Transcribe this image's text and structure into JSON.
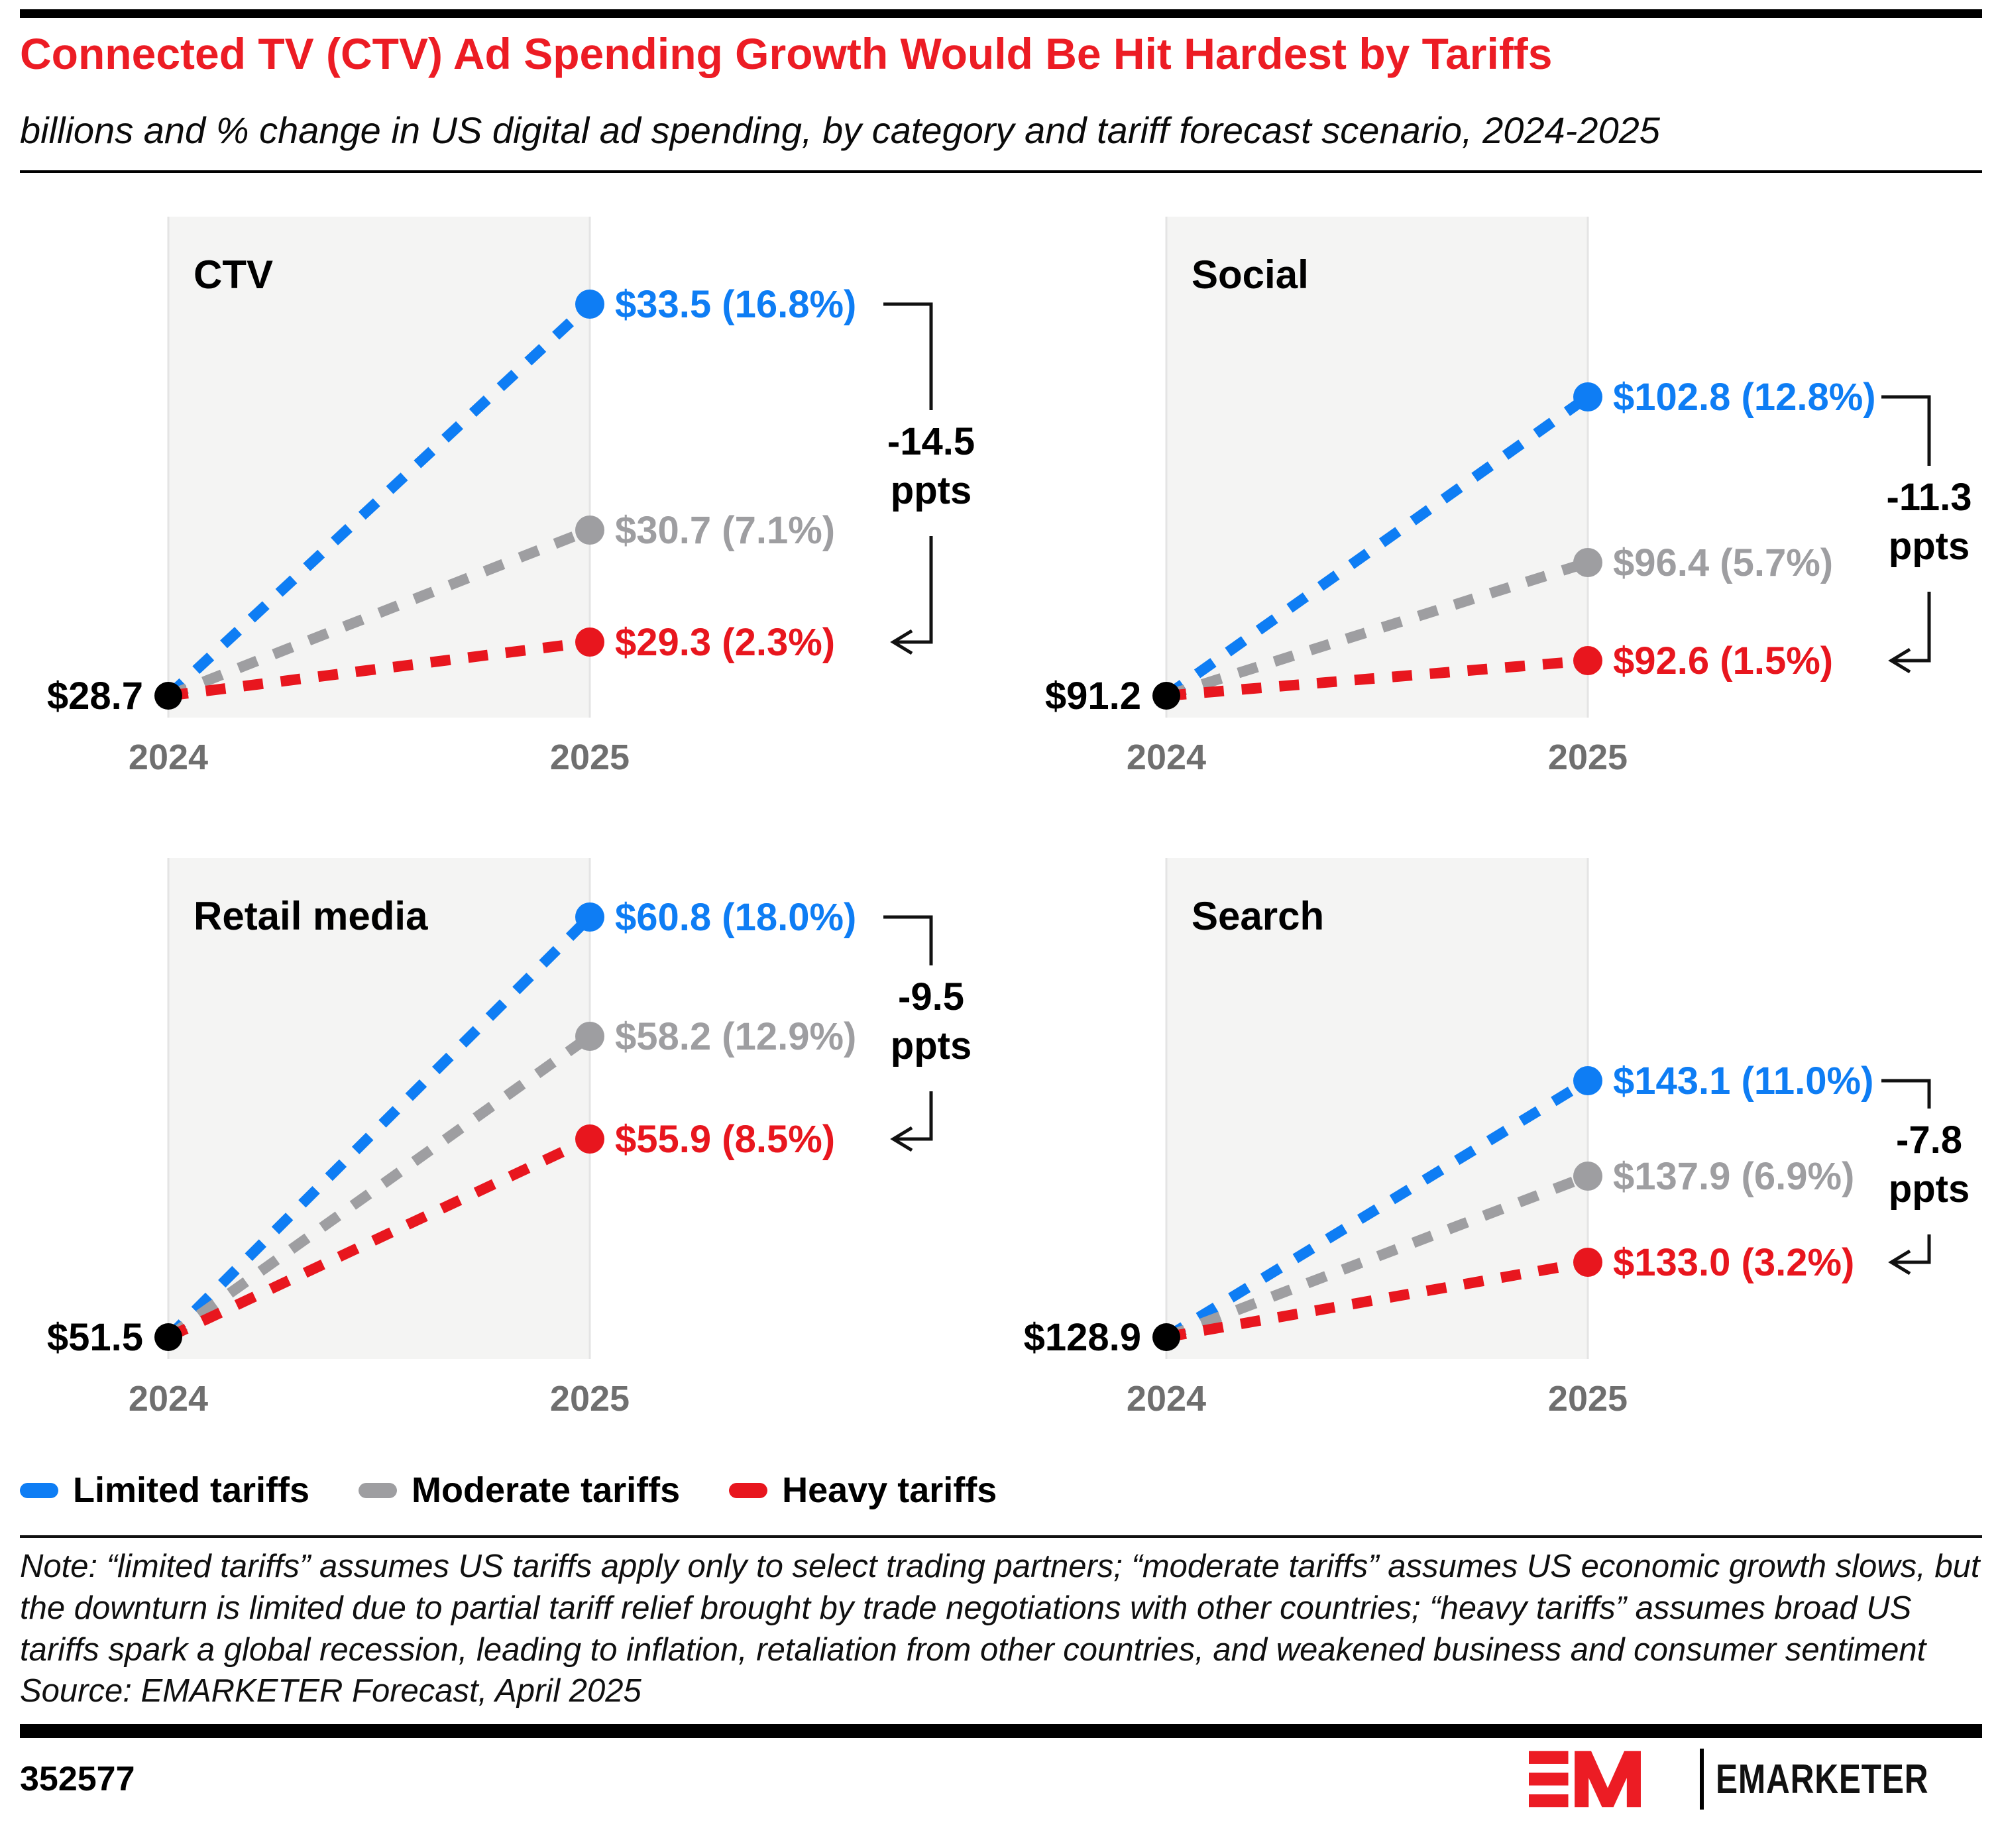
{
  "header": {
    "title": "Connected TV (CTV) Ad Spending Growth Would Be Hit Hardest by Tariffs",
    "subtitle": "billions and % change in US digital ad spending, by category and tariff forecast scenario, 2024-2025"
  },
  "colors": {
    "blue": "#0E7DF4",
    "gray": "#9E9EA1",
    "red": "#E8161E",
    "band": "#F4F4F3",
    "band_edge": "#E4E4E4",
    "axis_label": "#6F6F6F",
    "bracket": "#111111",
    "title_red": "#EC1C24"
  },
  "legend": [
    {
      "label": "Limited tariffs",
      "color": "#0E7DF4"
    },
    {
      "label": "Moderate tariffs",
      "color": "#9E9EA1"
    },
    {
      "label": "Heavy tariffs",
      "color": "#E8161E"
    }
  ],
  "chart_data": [
    {
      "type": "line",
      "name": "CTV",
      "x": [
        "2024",
        "2025"
      ],
      "base": {
        "year": "2024",
        "label": "$28.7",
        "value": 28.7
      },
      "series": [
        {
          "scenario": "Limited tariffs",
          "color": "#0E7DF4",
          "value_2025": 33.5,
          "pct_growth": 16.8,
          "label": "$33.5 (16.8%)"
        },
        {
          "scenario": "Moderate tariffs",
          "color": "#9E9EA1",
          "value_2025": 30.7,
          "pct_growth": 7.1,
          "label": "$30.7 (7.1%)"
        },
        {
          "scenario": "Heavy tariffs",
          "color": "#E8161E",
          "value_2025": 29.3,
          "pct_growth": 2.3,
          "label": "$29.3 (2.3%)"
        }
      ],
      "delta": {
        "value": "-14.5",
        "unit": "ppts"
      }
    },
    {
      "type": "line",
      "name": "Social",
      "x": [
        "2024",
        "2025"
      ],
      "base": {
        "year": "2024",
        "label": "$91.2",
        "value": 91.2
      },
      "series": [
        {
          "scenario": "Limited tariffs",
          "color": "#0E7DF4",
          "value_2025": 102.8,
          "pct_growth": 12.8,
          "label": "$102.8 (12.8%)"
        },
        {
          "scenario": "Moderate tariffs",
          "color": "#9E9EA1",
          "value_2025": 96.4,
          "pct_growth": 5.7,
          "label": "$96.4 (5.7%)"
        },
        {
          "scenario": "Heavy tariffs",
          "color": "#E8161E",
          "value_2025": 92.6,
          "pct_growth": 1.5,
          "label": "$92.6 (1.5%)"
        }
      ],
      "delta": {
        "value": "-11.3",
        "unit": "ppts"
      }
    },
    {
      "type": "line",
      "name": "Retail media",
      "x": [
        "2024",
        "2025"
      ],
      "base": {
        "year": "2024",
        "label": "$51.5",
        "value": 51.5
      },
      "series": [
        {
          "scenario": "Limited tariffs",
          "color": "#0E7DF4",
          "value_2025": 60.8,
          "pct_growth": 18.0,
          "label": "$60.8 (18.0%)"
        },
        {
          "scenario": "Moderate tariffs",
          "color": "#9E9EA1",
          "value_2025": 58.2,
          "pct_growth": 12.9,
          "label": "$58.2 (12.9%)"
        },
        {
          "scenario": "Heavy tariffs",
          "color": "#E8161E",
          "value_2025": 55.9,
          "pct_growth": 8.5,
          "label": "$55.9 (8.5%)"
        }
      ],
      "delta": {
        "value": "-9.5",
        "unit": "ppts"
      }
    },
    {
      "type": "line",
      "name": "Search",
      "x": [
        "2024",
        "2025"
      ],
      "base": {
        "year": "2024",
        "label": "$128.9",
        "value": 128.9
      },
      "series": [
        {
          "scenario": "Limited tariffs",
          "color": "#0E7DF4",
          "value_2025": 143.1,
          "pct_growth": 11.0,
          "label": "$143.1 (11.0%)"
        },
        {
          "scenario": "Moderate tariffs",
          "color": "#9E9EA1",
          "value_2025": 137.9,
          "pct_growth": 6.9,
          "label": "$137.9 (6.9%)"
        },
        {
          "scenario": "Heavy tariffs",
          "color": "#E8161E",
          "value_2025": 133.0,
          "pct_growth": 3.2,
          "label": "$133.0 (3.2%)"
        }
      ],
      "delta": {
        "value": "-7.8",
        "unit": "ppts"
      }
    }
  ],
  "note": "Note: “limited tariffs” assumes US tariffs apply only to select trading partners; “moderate tariffs” assumes US economic growth slows, but the downturn is limited due to partial tariff relief brought by trade negotiations with other countries; “heavy tariffs” assumes broad US tariffs spark a global recession, leading to inflation, retaliation from other countries, and weakened business and consumer sentiment",
  "source": "Source: EMARKETER Forecast, April 2025",
  "footer": {
    "chart_id": "352577",
    "logo_monogram": "EM",
    "logo_text": "EMARKETER"
  }
}
